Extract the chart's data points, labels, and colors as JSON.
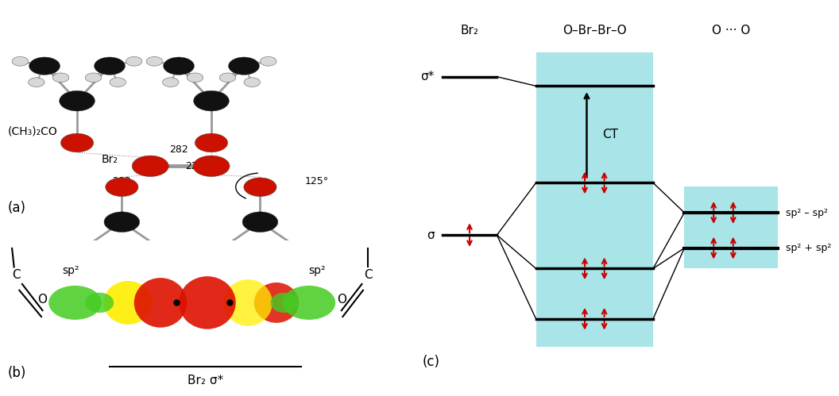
{
  "background_color": "#ffffff",
  "atom_colors": {
    "black": "#111111",
    "red": "#cc1100",
    "white": "#d8d8d8",
    "gray": "#999999"
  },
  "panel_c": {
    "col1_label": "Br₂",
    "col2_label": "O–Br–Br–O",
    "col3_label": "O ··· O",
    "sigma_star_label": "σ*",
    "sigma_label": "σ",
    "ct_label": "CT",
    "sp2_minus_label": "sp² – sp²",
    "sp2_plus_label": "sp² + sp²",
    "cyan_color": "#7ad6dc",
    "arrow_color": "#cc0000"
  }
}
